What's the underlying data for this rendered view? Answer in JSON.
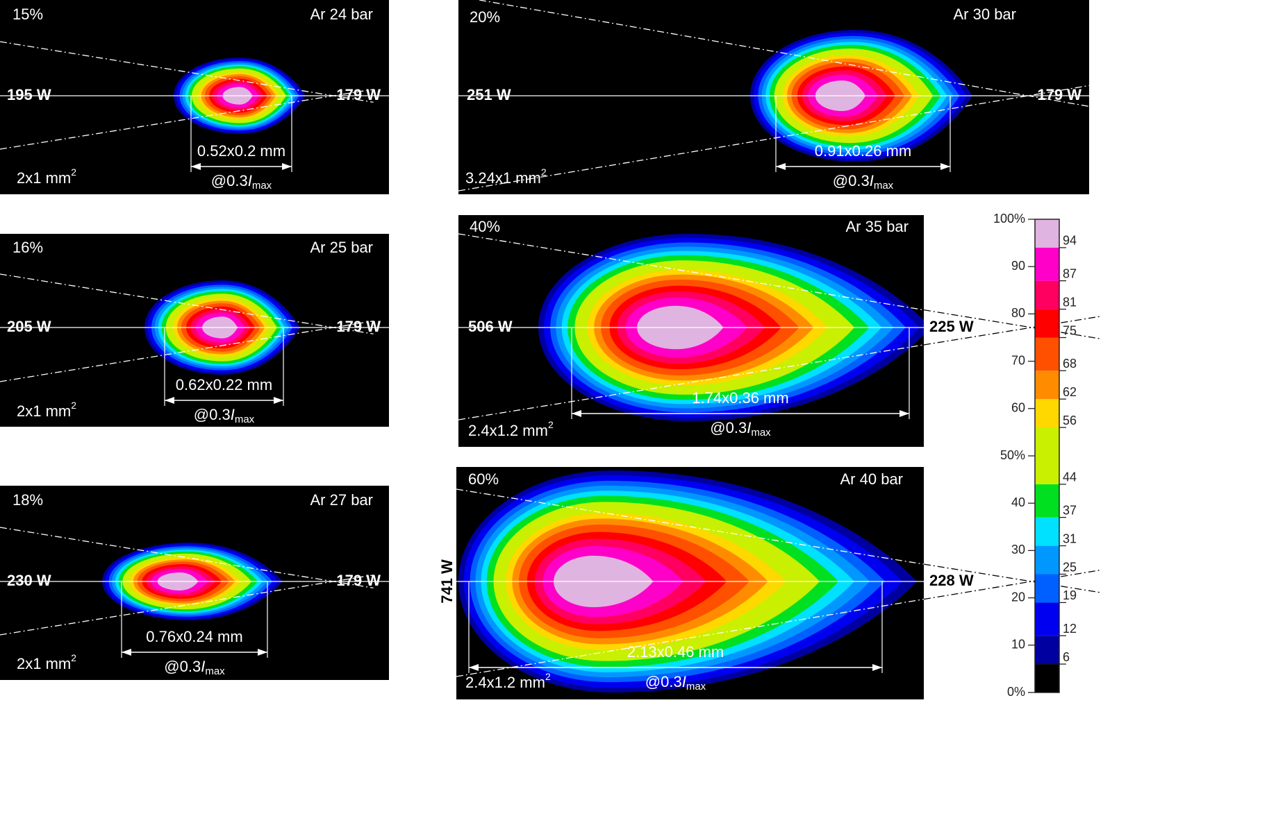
{
  "chart_data": {
    "type": "beam-profiles",
    "panels": [
      {
        "fraction": "15%",
        "gas": "Ar 24 bar",
        "power_left": "195 W",
        "power_right": "179 W",
        "size": "0.52x0.2 mm",
        "level": "@0.3",
        "level_symbol": "I",
        "level_sub": "max",
        "area": "2x1 mm",
        "area_sup": "2"
      },
      {
        "fraction": "16%",
        "gas": "Ar 25 bar",
        "power_left": "205 W",
        "power_right": "179 W",
        "size": "0.62x0.22 mm",
        "level": "@0.3",
        "level_symbol": "I",
        "level_sub": "max",
        "area": "2x1 mm",
        "area_sup": "2"
      },
      {
        "fraction": "18%",
        "gas": "Ar 27 bar",
        "power_left": "230 W",
        "power_right": "179 W",
        "size": "0.76x0.24 mm",
        "level": "@0.3",
        "level_symbol": "I",
        "level_sub": "max",
        "area": "2x1 mm",
        "area_sup": "2"
      },
      {
        "fraction": "20%",
        "gas": "Ar 30 bar",
        "power_left": "251 W",
        "power_right": "179 W",
        "size": "0.91x0.26 mm",
        "level": "@0.3",
        "level_symbol": "I",
        "level_sub": "max",
        "area": "3.24x1 mm",
        "area_sup": "2"
      },
      {
        "fraction": "40%",
        "gas": "Ar 35 bar",
        "power_left": "506 W",
        "power_right": "225 W",
        "size": "1.74x0.36 mm",
        "level": "@0.3",
        "level_symbol": "I",
        "level_sub": "max",
        "area": "2.4x1.2 mm",
        "area_sup": "2"
      },
      {
        "fraction": "60%",
        "gas": "Ar 40 bar",
        "power_left": "741 W",
        "power_right": "228 W",
        "size": "2.13x0.46 mm",
        "level": "@0.3",
        "level_symbol": "I",
        "level_sub": "max",
        "area": "2.4x1.2 mm",
        "area_sup": "2"
      }
    ],
    "colorbar": {
      "ylim": [
        0,
        100
      ],
      "yticks": [
        {
          "value": 0,
          "label": "0%"
        },
        10,
        20,
        30,
        40,
        {
          "value": 50,
          "label": "50%"
        },
        60,
        70,
        80,
        90,
        {
          "value": 100,
          "label": "100%"
        }
      ],
      "boundaries": [
        6,
        12,
        19,
        25,
        31,
        37,
        44,
        56,
        62,
        68,
        75,
        81,
        87,
        94
      ],
      "colors": [
        "#000000",
        "#0000a0",
        "#0000f0",
        "#0060ff",
        "#0098ff",
        "#00e0ff",
        "#00e020",
        "#c8f000",
        "#ffd800",
        "#ff8c00",
        "#ff5000",
        "#ff0000",
        "#ff0060",
        "#ff00c8",
        "#e0b4e0"
      ]
    }
  }
}
